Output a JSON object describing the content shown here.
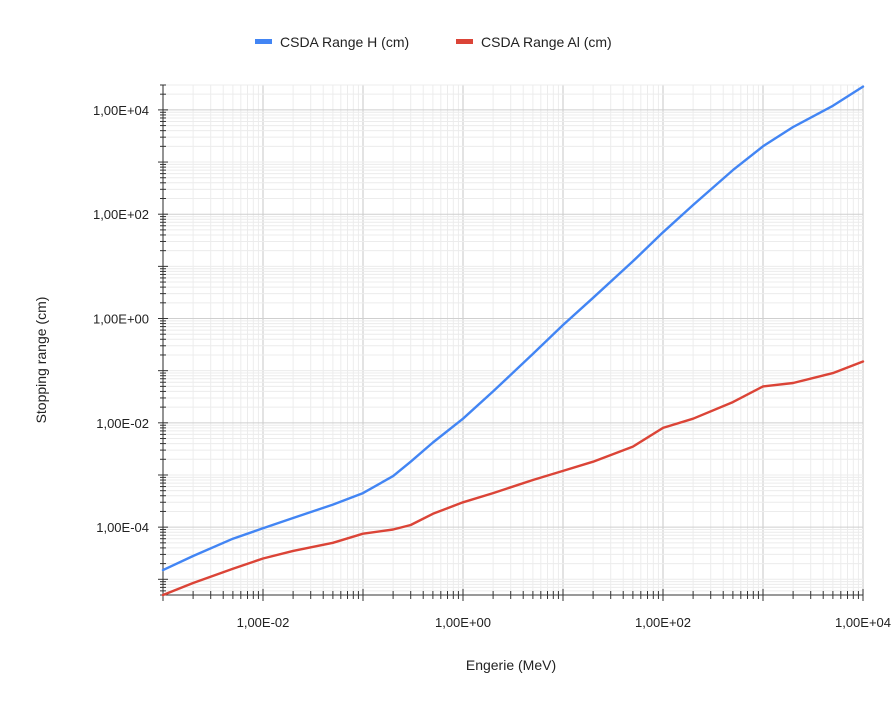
{
  "chart_data": {
    "type": "line",
    "xlabel": "Engerie (MeV)",
    "ylabel": "Stopping range (cm)",
    "x_scale": "log",
    "y_scale": "log",
    "xlim": [
      0.001,
      10000
    ],
    "ylim": [
      5e-06,
      30000
    ],
    "grid": true,
    "legend_position": "top",
    "x_ticks": [
      {
        "value": 0.01,
        "label": "1,00E-02"
      },
      {
        "value": 1,
        "label": "1,00E+00"
      },
      {
        "value": 100,
        "label": "1,00E+02"
      },
      {
        "value": 10000,
        "label": "1,00E+04"
      }
    ],
    "y_ticks": [
      {
        "value": 0.0001,
        "label": "1,00E-04"
      },
      {
        "value": 0.01,
        "label": "1,00E-02"
      },
      {
        "value": 1,
        "label": "1,00E+00"
      },
      {
        "value": 100,
        "label": "1,00E+02"
      },
      {
        "value": 10000,
        "label": "1,00E+04"
      }
    ],
    "series": [
      {
        "name": "CSDA Range H (cm)",
        "color": "#4285f4",
        "points": [
          [
            0.001,
            1.5e-05
          ],
          [
            0.002,
            2.8e-05
          ],
          [
            0.005,
            6e-05
          ],
          [
            0.01,
            9.5e-05
          ],
          [
            0.02,
            0.00015
          ],
          [
            0.05,
            0.00027
          ],
          [
            0.1,
            0.00045
          ],
          [
            0.2,
            0.00095
          ],
          [
            0.3,
            0.0018
          ],
          [
            0.5,
            0.0042
          ],
          [
            1,
            0.012
          ],
          [
            2,
            0.04
          ],
          [
            5,
            0.21
          ],
          [
            10,
            0.75
          ],
          [
            20,
            2.5
          ],
          [
            50,
            12.5
          ],
          [
            100,
            45
          ],
          [
            200,
            150
          ],
          [
            500,
            700
          ],
          [
            1000,
            2000
          ],
          [
            2000,
            4700
          ],
          [
            5000,
            12000
          ],
          [
            10000,
            28000
          ]
        ]
      },
      {
        "name": "CSDA Range Al (cm)",
        "color": "#db4437",
        "points": [
          [
            0.001,
            5e-06
          ],
          [
            0.002,
            8.5e-06
          ],
          [
            0.005,
            1.6e-05
          ],
          [
            0.01,
            2.5e-05
          ],
          [
            0.02,
            3.5e-05
          ],
          [
            0.05,
            5e-05
          ],
          [
            0.1,
            7.5e-05
          ],
          [
            0.2,
            9e-05
          ],
          [
            0.3,
            0.00011
          ],
          [
            0.5,
            0.00018
          ],
          [
            1,
            0.0003
          ],
          [
            2,
            0.00045
          ],
          [
            5,
            0.0008
          ],
          [
            10,
            0.0012
          ],
          [
            20,
            0.0018
          ],
          [
            50,
            0.0035
          ],
          [
            100,
            0.008
          ],
          [
            200,
            0.012
          ],
          [
            500,
            0.025
          ],
          [
            1000,
            0.05
          ],
          [
            2000,
            0.058
          ],
          [
            5000,
            0.09
          ],
          [
            10000,
            0.15
          ]
        ]
      }
    ]
  }
}
